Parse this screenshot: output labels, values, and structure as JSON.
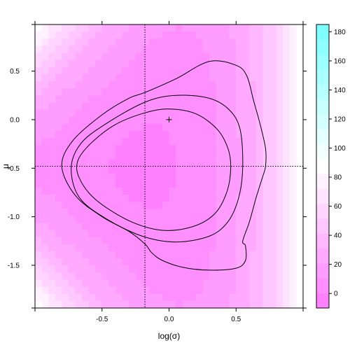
{
  "chart_data": {
    "type": "heatmap",
    "title": "",
    "xlabel": "log(σ)",
    "ylabel": "μ",
    "xlim": [
      -1.0,
      1.0
    ],
    "ylim": [
      -2.0,
      1.0
    ],
    "x_ticks": [
      -0.5,
      0.0,
      0.5
    ],
    "x_tick_labels": [
      "-0.5",
      "0.0",
      "0.5"
    ],
    "y_ticks": [
      -1.5,
      -1.0,
      -0.5,
      0.0,
      0.5
    ],
    "y_tick_labels": [
      "-1.5",
      "-1.0",
      "-0.5",
      "0.0",
      "0.5"
    ],
    "colorbar": {
      "range": [
        -10,
        185
      ],
      "ticks": [
        0,
        20,
        40,
        60,
        80,
        100,
        120,
        140,
        160,
        180
      ],
      "tick_labels": [
        "0",
        "20",
        "40",
        "60",
        "80",
        "100",
        "120",
        "140",
        "160",
        "180"
      ],
      "low_color": "#ff80ff",
      "mid_color": "#ffffff",
      "high_color": "#80ffff"
    },
    "reference_lines": {
      "v_x": -0.18,
      "h_y": -0.48
    },
    "marked_point": {
      "x": 0.0,
      "y": 0.0,
      "symbol": "+"
    },
    "minimum": {
      "x": -0.18,
      "y": -0.48
    },
    "contours": [
      {
        "level": "inner",
        "points": [
          [
            -0.18,
            0.07
          ],
          [
            0.0,
            0.11
          ],
          [
            0.2,
            0.06
          ],
          [
            0.36,
            -0.1
          ],
          [
            0.44,
            -0.3
          ],
          [
            0.46,
            -0.5
          ],
          [
            0.43,
            -0.75
          ],
          [
            0.34,
            -0.97
          ],
          [
            0.18,
            -1.1
          ],
          [
            -0.05,
            -1.14
          ],
          [
            -0.3,
            -1.04
          ],
          [
            -0.55,
            -0.82
          ],
          [
            -0.67,
            -0.6
          ],
          [
            -0.68,
            -0.42
          ],
          [
            -0.58,
            -0.24
          ],
          [
            -0.4,
            -0.05
          ]
        ]
      },
      {
        "level": "middle",
        "points": [
          [
            -0.18,
            0.18
          ],
          [
            0.05,
            0.25
          ],
          [
            0.3,
            0.22
          ],
          [
            0.45,
            0.1
          ],
          [
            0.53,
            -0.1
          ],
          [
            0.55,
            -0.48
          ],
          [
            0.52,
            -0.8
          ],
          [
            0.44,
            -1.05
          ],
          [
            0.3,
            -1.2
          ],
          [
            0.05,
            -1.26
          ],
          [
            -0.2,
            -1.2
          ],
          [
            -0.47,
            -1.02
          ],
          [
            -0.67,
            -0.8
          ],
          [
            -0.73,
            -0.5
          ],
          [
            -0.66,
            -0.25
          ],
          [
            -0.48,
            -0.05
          ]
        ]
      },
      {
        "level": "outer",
        "points": [
          [
            -0.18,
            0.28
          ],
          [
            0.05,
            0.42
          ],
          [
            0.3,
            0.6
          ],
          [
            0.5,
            0.56
          ],
          [
            0.58,
            0.45
          ],
          [
            0.63,
            0.2
          ],
          [
            0.68,
            -0.05
          ],
          [
            0.72,
            -0.3
          ],
          [
            0.72,
            -0.48
          ],
          [
            0.7,
            -0.58
          ],
          [
            0.65,
            -0.8
          ],
          [
            0.6,
            -1.05
          ],
          [
            0.55,
            -1.25
          ],
          [
            0.57,
            -1.3
          ],
          [
            0.57,
            -1.45
          ],
          [
            0.5,
            -1.53
          ],
          [
            0.3,
            -1.55
          ],
          [
            0.1,
            -1.52
          ],
          [
            -0.05,
            -1.45
          ],
          [
            -0.13,
            -1.37
          ],
          [
            -0.18,
            -1.28
          ],
          [
            -0.3,
            -1.15
          ],
          [
            -0.5,
            -1.0
          ],
          [
            -0.7,
            -0.78
          ],
          [
            -0.8,
            -0.48
          ],
          [
            -0.72,
            -0.22
          ],
          [
            -0.5,
            0.05
          ],
          [
            -0.3,
            0.22
          ]
        ]
      }
    ]
  }
}
